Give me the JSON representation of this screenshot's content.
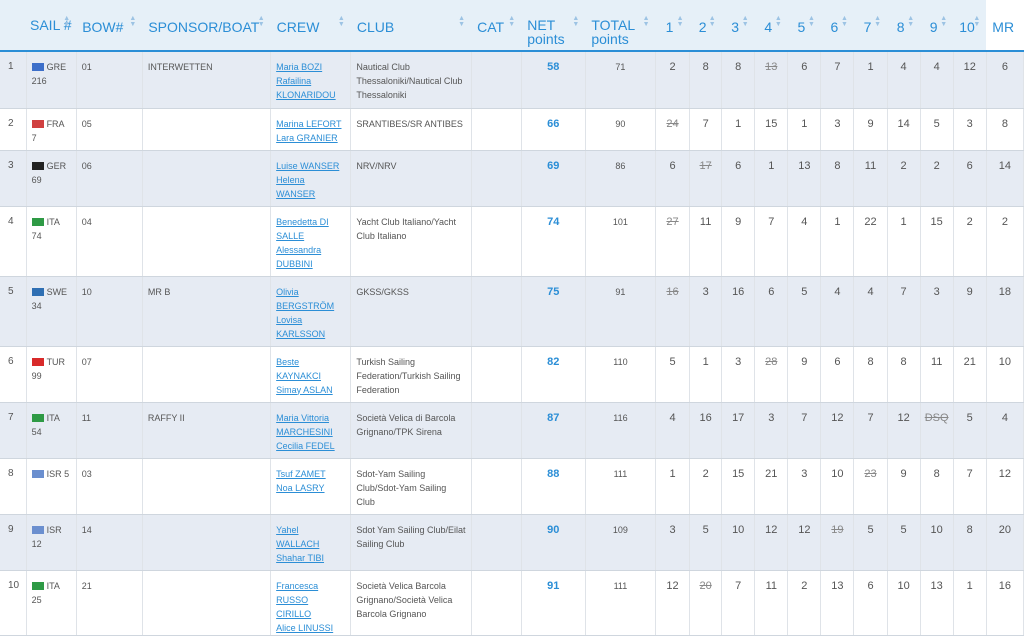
{
  "headers": {
    "sail": "SAIL #",
    "bow": "BOW#",
    "sponsor": "SPONSOR/BOAT",
    "crew": "CREW",
    "club": "CLUB",
    "cat": "CAT",
    "net": "NET points",
    "total": "TOTAL points",
    "races": [
      "1",
      "2",
      "3",
      "4",
      "5",
      "6",
      "7",
      "8",
      "9",
      "10",
      "MR"
    ]
  },
  "flag_colors": {
    "GRE": "#3d6fc9",
    "FRA": "#d04040",
    "GER": "#222222",
    "ITA": "#2e9a45",
    "SWE": "#2f6fb3",
    "TUR": "#d82a2a",
    "ISR": "#6b8fcf"
  },
  "rows": [
    {
      "rank": "1",
      "flag": "GRE",
      "sail": "GRE 216",
      "bow": "01",
      "sponsor": "INTERWETTEN",
      "crew": [
        "Maria BOZI",
        "Rafailina",
        "KLONARIDOU"
      ],
      "club": "Nautical Club Thessaloniki/Nautical Club Thessaloniki",
      "net": "58",
      "total": "71",
      "races": [
        "2",
        "8",
        "8",
        "13",
        "6",
        "7",
        "1",
        "4",
        "4",
        "12",
        "6"
      ],
      "dropped": [
        3
      ]
    },
    {
      "rank": "2",
      "flag": "FRA",
      "sail": "FRA 7",
      "bow": "05",
      "sponsor": "",
      "crew": [
        "Marina LEFORT",
        "Lara GRANIER"
      ],
      "club": "SRANTIBES/SR ANTIBES",
      "net": "66",
      "total": "90",
      "races": [
        "24",
        "7",
        "1",
        "15",
        "1",
        "3",
        "9",
        "14",
        "5",
        "3",
        "8"
      ],
      "dropped": [
        0
      ]
    },
    {
      "rank": "3",
      "flag": "GER",
      "sail": "GER 69",
      "bow": "06",
      "sponsor": "",
      "crew": [
        "Luise WANSER",
        "Helena",
        "WANSER"
      ],
      "club": "NRV/NRV",
      "net": "69",
      "total": "86",
      "races": [
        "6",
        "17",
        "6",
        "1",
        "13",
        "8",
        "11",
        "2",
        "2",
        "6",
        "14"
      ],
      "dropped": [
        1
      ]
    },
    {
      "rank": "4",
      "flag": "ITA",
      "sail": "ITA 74",
      "bow": "04",
      "sponsor": "",
      "crew": [
        "Benedetta DI",
        "SALLE",
        "Alessandra",
        "DUBBINI"
      ],
      "club": "Yacht Club Italiano/Yacht Club Italiano",
      "net": "74",
      "total": "101",
      "races": [
        "27",
        "11",
        "9",
        "7",
        "4",
        "1",
        "22",
        "1",
        "15",
        "2",
        "2"
      ],
      "dropped": [
        0
      ]
    },
    {
      "rank": "5",
      "flag": "SWE",
      "sail": "SWE 34",
      "bow": "10",
      "sponsor": "MR B",
      "crew": [
        "Olivia",
        "BERGSTRÖM",
        "Lovisa",
        "KARLSSON"
      ],
      "club": "GKSS/GKSS",
      "net": "75",
      "total": "91",
      "races": [
        "16",
        "3",
        "16",
        "6",
        "5",
        "4",
        "4",
        "7",
        "3",
        "9",
        "18"
      ],
      "dropped": [
        0
      ]
    },
    {
      "rank": "6",
      "flag": "TUR",
      "sail": "TUR 99",
      "bow": "07",
      "sponsor": "",
      "crew": [
        "Beste",
        "KAYNAKCI",
        "Simay ASLAN"
      ],
      "club": "Turkish Sailing Federation/Turkish Sailing Federation",
      "net": "82",
      "total": "110",
      "races": [
        "5",
        "1",
        "3",
        "28",
        "9",
        "6",
        "8",
        "8",
        "11",
        "21",
        "10"
      ],
      "dropped": [
        3
      ]
    },
    {
      "rank": "7",
      "flag": "ITA",
      "sail": "ITA 54",
      "bow": "11",
      "sponsor": "RAFFY II",
      "crew": [
        "Maria Vittoria",
        "MARCHESINI",
        "Cecilia FEDEL"
      ],
      "club": "Società Velica di Barcola Grignano/TPK Sirena",
      "net": "87",
      "total": "116",
      "races": [
        "4",
        "16",
        "17",
        "3",
        "7",
        "12",
        "7",
        "12",
        "DSQ",
        "5",
        "4"
      ],
      "dropped": [
        8
      ]
    },
    {
      "rank": "8",
      "flag": "ISR",
      "sail": "ISR 5",
      "bow": "03",
      "sponsor": "",
      "crew": [
        "Tsuf ZAMET",
        "Noa LASRY"
      ],
      "club": "Sdot-Yam Sailing Club/Sdot-Yam Sailing Club",
      "net": "88",
      "total": "111",
      "races": [
        "1",
        "2",
        "15",
        "21",
        "3",
        "10",
        "23",
        "9",
        "8",
        "7",
        "12"
      ],
      "dropped": [
        6
      ]
    },
    {
      "rank": "9",
      "flag": "ISR",
      "sail": "ISR 12",
      "bow": "14",
      "sponsor": "",
      "crew": [
        "Yahel",
        "WALLACH",
        "Shahar TIBI"
      ],
      "club": "Sdot Yam Sailing Club/Eilat Sailing Club",
      "net": "90",
      "total": "109",
      "races": [
        "3",
        "5",
        "10",
        "12",
        "12",
        "19",
        "5",
        "5",
        "10",
        "8",
        "20"
      ],
      "dropped": [
        5
      ]
    },
    {
      "rank": "10",
      "flag": "ITA",
      "sail": "ITA 25",
      "bow": "21",
      "sponsor": "",
      "crew": [
        "Francesca",
        "RUSSO CIRILLO",
        "Alice LINUSSI"
      ],
      "club": "Società Velica Barcola Grignano/Società Velica Barcola Grignano",
      "net": "91",
      "total": "111",
      "races": [
        "12",
        "20",
        "7",
        "11",
        "2",
        "13",
        "6",
        "10",
        "13",
        "1",
        "16"
      ],
      "dropped": [
        1
      ]
    }
  ]
}
